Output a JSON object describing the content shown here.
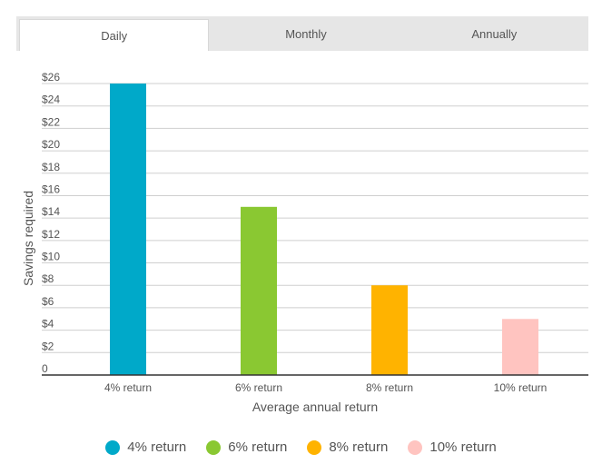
{
  "tabs": [
    {
      "label": "Daily",
      "active": true
    },
    {
      "label": "Monthly",
      "active": false
    },
    {
      "label": "Annually",
      "active": false
    }
  ],
  "chart_data": {
    "type": "bar",
    "categories": [
      "4% return",
      "6% return",
      "8% return",
      "10% return"
    ],
    "values": [
      26,
      15,
      8,
      5
    ],
    "colors": [
      "#00a9c9",
      "#8ac832",
      "#ffb300",
      "#ffc4c0"
    ],
    "xlabel": "Average annual return",
    "ylabel": "Savings required",
    "ylim": [
      0,
      26
    ],
    "yticks": [
      0,
      2,
      4,
      6,
      8,
      10,
      12,
      14,
      16,
      18,
      20,
      22,
      24,
      26
    ],
    "ytick_labels": [
      "0",
      "$2",
      "$4",
      "$6",
      "$8",
      "$10",
      "$12",
      "$14",
      "$16",
      "$18",
      "$20",
      "$22",
      "$24",
      "$26"
    ],
    "grid": true,
    "legend": "bottom"
  },
  "legend": [
    {
      "label": "4% return",
      "color": "#00a9c9"
    },
    {
      "label": "6% return",
      "color": "#8ac832"
    },
    {
      "label": "8% return",
      "color": "#ffb300"
    },
    {
      "label": "10% return",
      "color": "#ffc4c0"
    }
  ]
}
